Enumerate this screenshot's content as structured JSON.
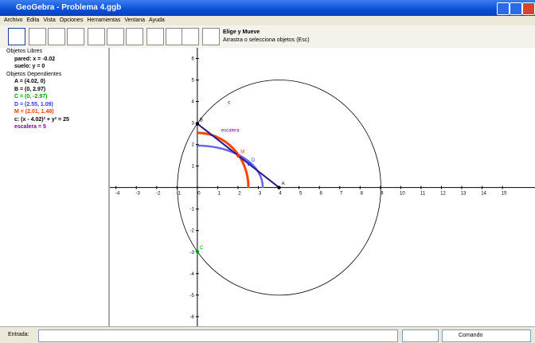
{
  "window": {
    "title": "GeoGebra - Problema 4.ggb"
  },
  "menu": [
    "Archivo",
    "Edita",
    "Vista",
    "Opciones",
    "Herramientas",
    "Ventana",
    "Ayuda"
  ],
  "toolbar": {
    "tool_name": "Elige y Mueve",
    "tool_help": "Arrastra o selecciona objetos (Esc)"
  },
  "algebra": {
    "free_header": "Objetos Libres",
    "free": [
      {
        "text": "pared: x = -0.02",
        "color": "#000000"
      },
      {
        "text": "suelo: y = 0",
        "color": "#000000"
      }
    ],
    "dependent_header": "Objetos Dependientes",
    "dependent": [
      {
        "text": "A = (4.02, 0)",
        "color": "#000000"
      },
      {
        "text": "B = (0, 2.97)",
        "color": "#000000"
      },
      {
        "text": "C = (0, -2.97)",
        "color": "#00a000"
      },
      {
        "text": "D = (2.55, 1.09)",
        "color": "#3333ff"
      },
      {
        "text": "M = (2.01, 1.48)",
        "color": "#ff3300"
      },
      {
        "text": "c: (x - 4.02)² + y² = 25",
        "color": "#000000"
      },
      {
        "text": "escalera = 5",
        "color": "#7f00a0"
      }
    ]
  },
  "graphics": {
    "xlim": [
      -4.3,
      16.6
    ],
    "ylim": [
      -6.45,
      6.5
    ],
    "xticks": [
      -4,
      -3,
      -2,
      -1,
      0,
      1,
      2,
      3,
      4,
      5,
      6,
      7,
      8,
      9,
      10,
      11,
      12,
      13,
      14,
      15
    ],
    "yticks": [
      -6,
      -5,
      -4,
      -3,
      -2,
      -1,
      1,
      2,
      3,
      4,
      5,
      6
    ],
    "points": [
      {
        "label": "A",
        "x": 4.02,
        "y": 0,
        "color": "#000000"
      },
      {
        "label": "B",
        "x": 0,
        "y": 2.97,
        "color": "#000000"
      },
      {
        "label": "C",
        "x": 0,
        "y": -2.97,
        "color": "#00a000"
      },
      {
        "label": "D",
        "x": 2.55,
        "y": 1.09,
        "color": "#3333ff"
      },
      {
        "label": "M",
        "x": 2.01,
        "y": 1.48,
        "color": "#ff3300"
      }
    ],
    "segment_label": "escalera",
    "circle_label": "c"
  },
  "input": {
    "label": "Entrada:",
    "command": "Comando"
  }
}
